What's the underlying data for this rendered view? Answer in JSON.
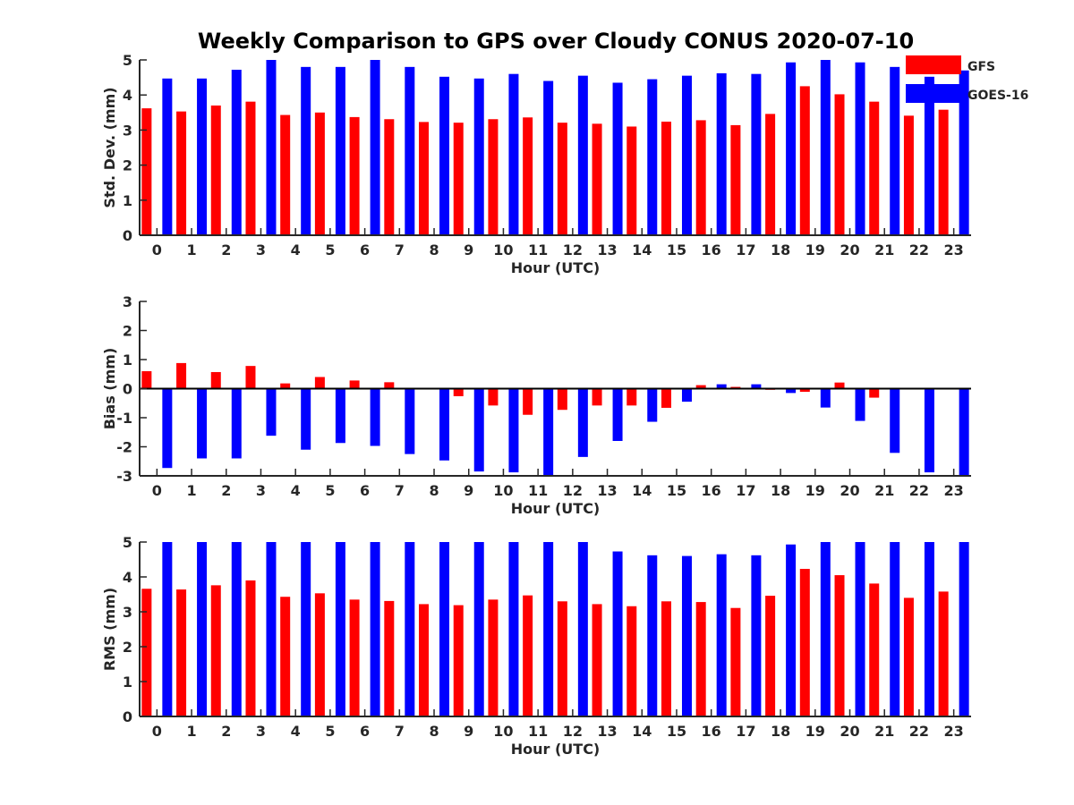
{
  "colors": {
    "GFS": "#ff0000",
    "GOES-16": "#0000ff",
    "axis": "#262626"
  },
  "chart_data": {
    "title": "Weekly Comparison to GPS over Cloudy CONUS 2020-07-10",
    "type": "bar",
    "legend": {
      "placement": "top-right",
      "entries": [
        "GFS",
        "GOES-16"
      ]
    },
    "panels": [
      {
        "ylabel": "Std. Dev. (mm)",
        "xlabel": "Hour (UTC)",
        "ylim": [
          0,
          5
        ],
        "yticks": [
          0,
          1,
          2,
          3,
          4,
          5
        ],
        "categories": [
          "0",
          "1",
          "2",
          "3",
          "4",
          "5",
          "6",
          "7",
          "8",
          "9",
          "10",
          "11",
          "12",
          "13",
          "14",
          "15",
          "16",
          "17",
          "18",
          "19",
          "20",
          "21",
          "22",
          "23"
        ],
        "series": [
          {
            "name": "GFS",
            "values": [
              3.62,
              3.53,
              3.7,
              3.81,
              3.43,
              3.5,
              3.37,
              3.31,
              3.23,
              3.21,
              3.31,
              3.36,
              3.21,
              3.18,
              3.1,
              3.24,
              3.28,
              3.14,
              3.46,
              4.25,
              4.02,
              3.81,
              3.41,
              3.58
            ]
          },
          {
            "name": "GOES-16",
            "values": [
              4.47,
              4.47,
              4.72,
              5.0,
              4.8,
              4.8,
              5.0,
              4.8,
              4.52,
              4.47,
              4.6,
              4.4,
              4.55,
              4.35,
              4.45,
              4.55,
              4.62,
              4.6,
              4.93,
              5.0,
              4.93,
              4.8,
              4.52,
              4.7
            ]
          }
        ]
      },
      {
        "ylabel": "Bias (mm)",
        "xlabel": "Hour (UTC)",
        "ylim": [
          -3,
          3
        ],
        "yticks": [
          -3,
          -2,
          -1,
          0,
          1,
          2,
          3
        ],
        "zero_line": true,
        "categories": [
          "0",
          "1",
          "2",
          "3",
          "4",
          "5",
          "6",
          "7",
          "8",
          "9",
          "10",
          "11",
          "12",
          "13",
          "14",
          "15",
          "16",
          "17",
          "18",
          "19",
          "20",
          "21",
          "22",
          "23"
        ],
        "series": [
          {
            "name": "GFS",
            "values": [
              0.6,
              0.88,
              0.57,
              0.78,
              0.18,
              0.4,
              0.28,
              0.22,
              -0.02,
              -0.26,
              -0.58,
              -0.9,
              -0.73,
              -0.58,
              -0.58,
              -0.66,
              0.12,
              0.06,
              -0.04,
              -0.11,
              0.21,
              -0.31,
              -0.03,
              -0.03
            ]
          },
          {
            "name": "GOES-16",
            "values": [
              -2.73,
              -2.4,
              -2.4,
              -1.62,
              -2.1,
              -1.87,
              -1.97,
              -2.25,
              -2.47,
              -2.85,
              -2.88,
              -3.0,
              -2.35,
              -1.8,
              -1.14,
              -0.45,
              0.15,
              0.15,
              -0.15,
              -0.65,
              -1.11,
              -2.21,
              -2.88,
              -3.0
            ]
          }
        ]
      },
      {
        "ylabel": "RMS (mm)",
        "xlabel": "Hour (UTC)",
        "ylim": [
          0,
          5
        ],
        "yticks": [
          0,
          1,
          2,
          3,
          4,
          5
        ],
        "categories": [
          "0",
          "1",
          "2",
          "3",
          "4",
          "5",
          "6",
          "7",
          "8",
          "9",
          "10",
          "11",
          "12",
          "13",
          "14",
          "15",
          "16",
          "17",
          "18",
          "19",
          "20",
          "21",
          "22",
          "23"
        ],
        "series": [
          {
            "name": "GFS",
            "values": [
              3.66,
              3.64,
              3.76,
              3.9,
              3.43,
              3.53,
              3.35,
              3.31,
              3.22,
              3.19,
              3.35,
              3.47,
              3.3,
              3.22,
              3.16,
              3.3,
              3.28,
              3.11,
              3.46,
              4.23,
              4.05,
              3.81,
              3.4,
              3.58
            ]
          },
          {
            "name": "GOES-16",
            "values": [
              5.0,
              5.0,
              5.0,
              5.0,
              5.0,
              5.0,
              5.0,
              5.0,
              5.0,
              5.0,
              5.0,
              5.0,
              5.0,
              4.73,
              4.62,
              4.6,
              4.65,
              4.62,
              4.93,
              5.0,
              5.0,
              5.0,
              5.0,
              5.0
            ]
          }
        ]
      }
    ]
  }
}
